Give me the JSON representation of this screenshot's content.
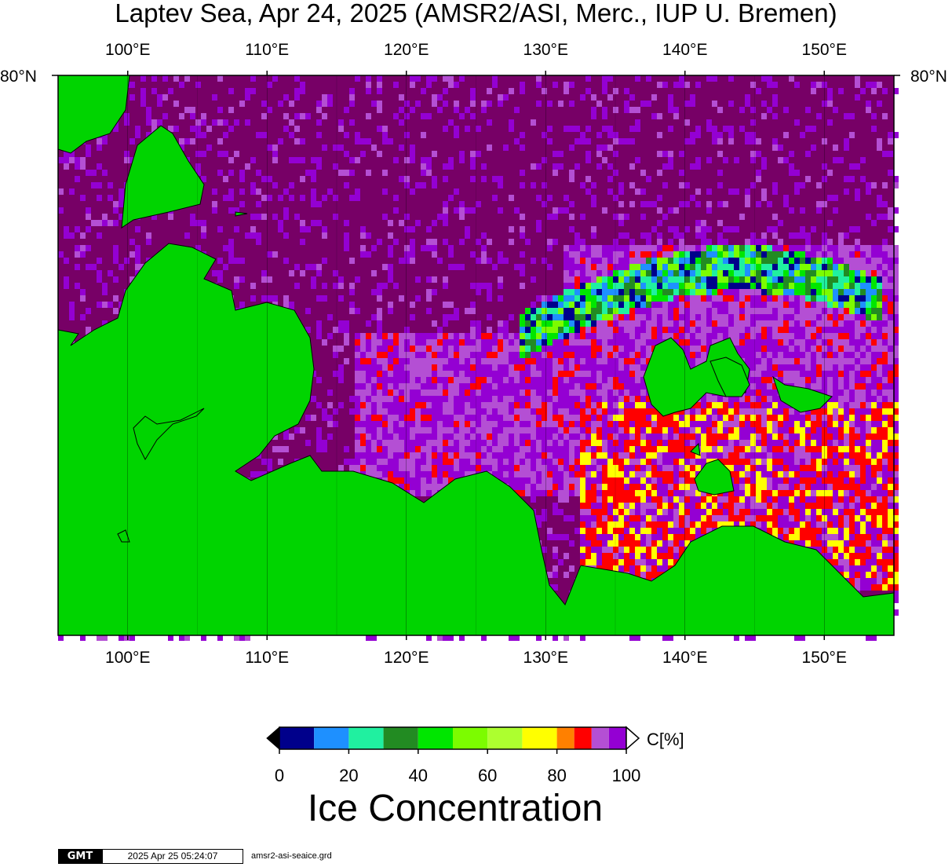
{
  "title": "Laptev Sea, Apr 24, 2025 (AMSR2/ASI, Merc., IUP U. Bremen)",
  "map": {
    "projection": "Mercator",
    "lon_range_deg_e": [
      95,
      155
    ],
    "top_lat_label": "80°N",
    "lon_labels": [
      "100°E",
      "110°E",
      "120°E",
      "130°E",
      "140°E",
      "150°E"
    ],
    "lon_values": [
      100,
      110,
      120,
      130,
      140,
      150
    ],
    "colors": {
      "land": "#00d400",
      "full_ice": "#770066",
      "coast": "#000000"
    }
  },
  "colorbar": {
    "unit_label": "C[%]",
    "tick_labels": [
      "0",
      "20",
      "40",
      "60",
      "80",
      "100"
    ],
    "tick_values": [
      0,
      20,
      40,
      60,
      80,
      100
    ],
    "bins": [
      {
        "from": 0,
        "to": 10,
        "color": "#00008b"
      },
      {
        "from": 10,
        "to": 20,
        "color": "#1e90ff"
      },
      {
        "from": 20,
        "to": 30,
        "color": "#20f0a0"
      },
      {
        "from": 30,
        "to": 40,
        "color": "#228b22"
      },
      {
        "from": 40,
        "to": 50,
        "color": "#00e600"
      },
      {
        "from": 50,
        "to": 60,
        "color": "#7cfc00"
      },
      {
        "from": 60,
        "to": 70,
        "color": "#adff2f"
      },
      {
        "from": 70,
        "to": 80,
        "color": "#ffff00"
      },
      {
        "from": 80,
        "to": 85,
        "color": "#ff8000"
      },
      {
        "from": 85,
        "to": 90,
        "color": "#ff0000"
      },
      {
        "from": 90,
        "to": 95,
        "color": "#b44fd4"
      },
      {
        "from": 95,
        "to": 100,
        "color": "#9400d3"
      }
    ],
    "below_range_color": "#000000",
    "above_range_color": "#ffffff"
  },
  "footer": {
    "caption": "Ice Concentration",
    "gmt_logo_text": "GMT",
    "timestamp": "2025 Apr 25 05:24:07",
    "filename": "amsr2-asi-seaice.grd"
  }
}
